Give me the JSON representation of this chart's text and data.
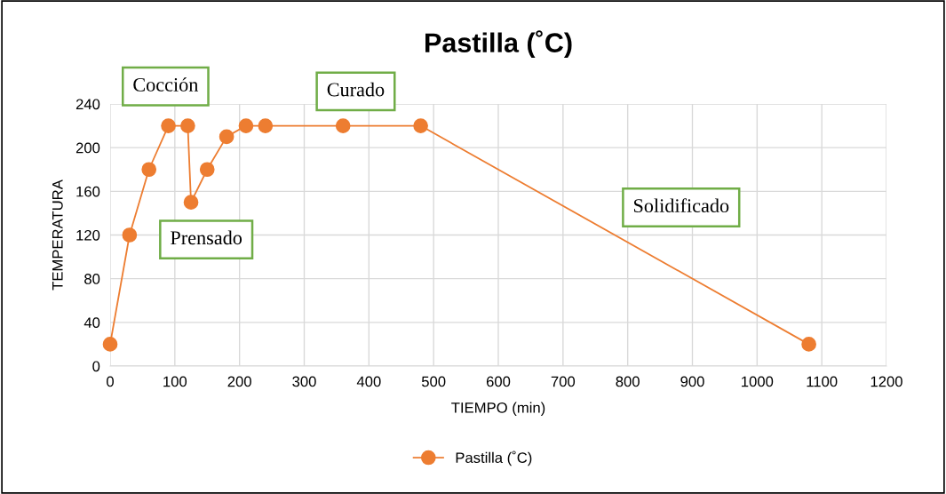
{
  "chart_data": {
    "type": "line",
    "title": "Pastilla (˚C)",
    "xlabel": "TIEMPO (min)",
    "ylabel": "TEMPERATURA",
    "series": [
      {
        "name": "Pastilla (˚C)",
        "color": "#ed7d31",
        "x": [
          0,
          30,
          60,
          90,
          120,
          125,
          150,
          180,
          210,
          240,
          360,
          480,
          1080
        ],
        "values": [
          20,
          120,
          180,
          220,
          220,
          150,
          180,
          210,
          220,
          220,
          220,
          220,
          20
        ]
      }
    ],
    "xlim": [
      0,
      1200
    ],
    "xticks": [
      0,
      100,
      200,
      300,
      400,
      500,
      600,
      700,
      800,
      900,
      1000,
      1100,
      1200
    ],
    "ylim": [
      0,
      240
    ],
    "yticks": [
      0,
      40,
      80,
      120,
      160,
      200,
      240
    ],
    "annotations": [
      "Cocción",
      "Prensado",
      "Curado",
      "Solidificado"
    ],
    "grid": true,
    "legend": "bottom",
    "marker": "circle",
    "line_style": "solid"
  }
}
